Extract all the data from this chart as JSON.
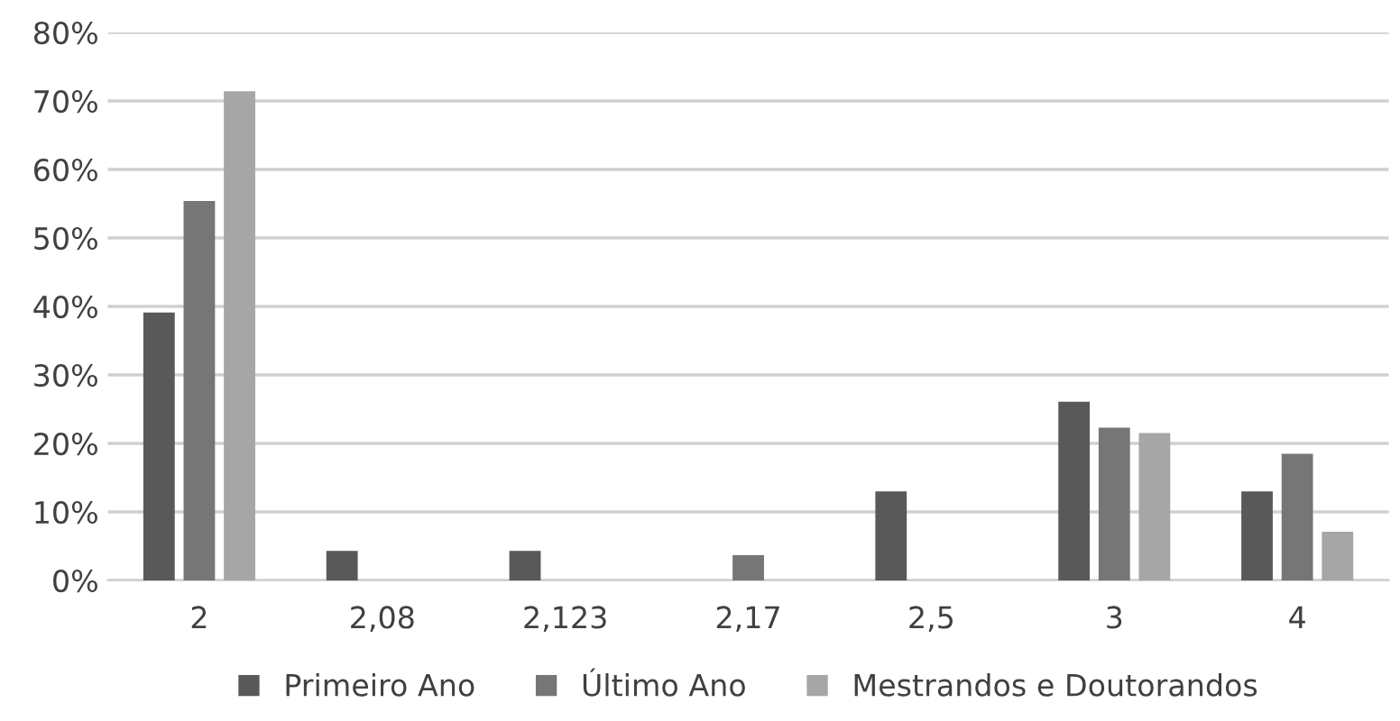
{
  "chart_data": {
    "type": "bar",
    "categories": [
      "2",
      "2,08",
      "2,123",
      "2,17",
      "2,5",
      "3",
      "4"
    ],
    "series": [
      {
        "name": "Primeiro Ano",
        "color": "#595959",
        "values": [
          39.1,
          4.3,
          4.3,
          null,
          13.0,
          26.1,
          13.0
        ]
      },
      {
        "name": "Último Ano",
        "color": "#767676",
        "values": [
          55.4,
          null,
          null,
          3.7,
          null,
          22.3,
          18.5
        ]
      },
      {
        "name": "Mestrandos e Doutorandos",
        "color": "#a6a6a6",
        "values": [
          71.4,
          null,
          null,
          null,
          null,
          21.5,
          7.1
        ]
      }
    ],
    "ylim": [
      0,
      80
    ],
    "yticks": [
      {
        "value": 0,
        "label": "0%"
      },
      {
        "value": 10,
        "label": "10%"
      },
      {
        "value": 20,
        "label": "20%"
      },
      {
        "value": 30,
        "label": "30%"
      },
      {
        "value": 40,
        "label": "40%"
      },
      {
        "value": 50,
        "label": "50%"
      },
      {
        "value": 60,
        "label": "60%"
      },
      {
        "value": 70,
        "label": "70%"
      },
      {
        "value": 80,
        "label": "80%"
      }
    ],
    "grid": "y",
    "legend": "bottom"
  }
}
